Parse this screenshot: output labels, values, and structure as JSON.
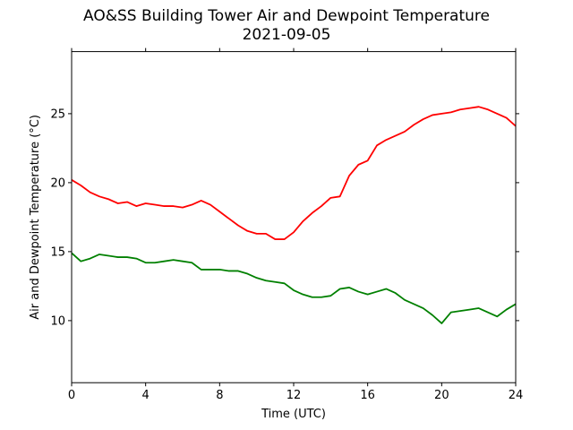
{
  "chart_data": {
    "type": "line",
    "title": "AO&SS Building Tower Air and Dewpoint Temperature",
    "subtitle": "2021-09-05",
    "xlabel": "Time (UTC)",
    "ylabel": "Air and Dewpoint Temperature (°C)",
    "xlim": [
      0,
      24
    ],
    "ylim": [
      5.5,
      29.5
    ],
    "xticks": [
      0,
      4,
      8,
      12,
      16,
      20,
      24
    ],
    "yticks": [
      10,
      15,
      20,
      25
    ],
    "grid": false,
    "legend": "none",
    "series": [
      {
        "color": "#ff0000",
        "x": [
          0,
          0.5,
          1,
          1.5,
          2,
          2.5,
          3,
          3.5,
          4,
          4.5,
          5,
          5.5,
          6,
          6.5,
          7,
          7.5,
          8,
          8.5,
          9,
          9.5,
          10,
          10.5,
          11,
          11.5,
          12,
          12.5,
          13,
          13.5,
          14,
          14.5,
          15,
          15.5,
          16,
          16.5,
          17,
          17.5,
          18,
          18.5,
          19,
          19.5,
          20,
          20.5,
          21,
          21.5,
          22,
          22.5,
          23,
          23.5,
          24
        ],
        "y": [
          20.2,
          19.8,
          19.3,
          19.0,
          18.8,
          18.5,
          18.6,
          18.3,
          18.5,
          18.4,
          18.3,
          18.3,
          18.2,
          18.4,
          18.7,
          18.4,
          17.9,
          17.4,
          16.9,
          16.5,
          16.3,
          16.3,
          15.9,
          15.9,
          16.4,
          17.2,
          17.8,
          18.3,
          18.9,
          19.0,
          20.5,
          21.3,
          21.6,
          22.7,
          23.1,
          23.4,
          23.7,
          24.2,
          24.6,
          24.9,
          25.0,
          25.1,
          25.3,
          25.4,
          25.5,
          25.3,
          25.0,
          24.7,
          24.1
        ]
      },
      {
        "color": "#008000",
        "x": [
          0,
          0.5,
          1,
          1.5,
          2,
          2.5,
          3,
          3.5,
          4,
          4.5,
          5,
          5.5,
          6,
          6.5,
          7,
          7.5,
          8,
          8.5,
          9,
          9.5,
          10,
          10.5,
          11,
          11.5,
          12,
          12.5,
          13,
          13.5,
          14,
          14.5,
          15,
          15.5,
          16,
          16.5,
          17,
          17.5,
          18,
          18.5,
          19,
          19.5,
          20,
          20.5,
          21,
          21.5,
          22,
          22.5,
          23,
          23.5,
          24
        ],
        "y": [
          14.9,
          14.3,
          14.5,
          14.8,
          14.7,
          14.6,
          14.6,
          14.5,
          14.2,
          14.2,
          14.3,
          14.4,
          14.3,
          14.2,
          13.7,
          13.7,
          13.7,
          13.6,
          13.6,
          13.4,
          13.1,
          12.9,
          12.8,
          12.7,
          12.2,
          11.9,
          11.7,
          11.7,
          11.8,
          12.3,
          12.4,
          12.1,
          11.9,
          12.1,
          12.3,
          12.0,
          11.5,
          11.2,
          10.9,
          10.4,
          9.8,
          10.6,
          10.7,
          10.8,
          10.9,
          10.6,
          10.3,
          10.8,
          11.2
        ]
      }
    ]
  }
}
